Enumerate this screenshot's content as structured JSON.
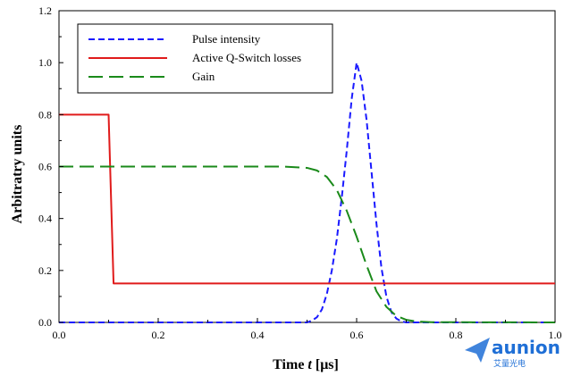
{
  "chart_data": {
    "type": "line",
    "xlabel_prefix": "Time ",
    "xlabel_var": "t",
    "xlabel_suffix": " [μs]",
    "ylabel": "Arbitratry units",
    "xlim": [
      0.0,
      1.0
    ],
    "ylim": [
      0.0,
      1.2
    ],
    "xticks": [
      "0.0",
      "0.2",
      "0.4",
      "0.6",
      "0.8",
      "1.0"
    ],
    "yticks": [
      "0.0",
      "0.2",
      "0.4",
      "0.6",
      "0.8",
      "1.0",
      "1.2"
    ],
    "grid": false,
    "legend_position": "top-left",
    "series": [
      {
        "name": "Pulse intensity",
        "color": "#1a1aff",
        "style": "dashed",
        "x": [
          0.0,
          0.5,
          0.51,
          0.52,
          0.53,
          0.54,
          0.55,
          0.56,
          0.57,
          0.58,
          0.59,
          0.6,
          0.61,
          0.62,
          0.63,
          0.64,
          0.65,
          0.66,
          0.67,
          0.68,
          0.69,
          0.7,
          1.0
        ],
        "y": [
          0.0,
          0.0,
          0.007,
          0.02,
          0.05,
          0.11,
          0.2,
          0.32,
          0.48,
          0.66,
          0.86,
          1.0,
          0.93,
          0.78,
          0.58,
          0.38,
          0.21,
          0.1,
          0.04,
          0.015,
          0.004,
          0.0,
          0.0
        ]
      },
      {
        "name": "Active Q-Switch losses",
        "color": "#e01b1b",
        "style": "solid",
        "x": [
          0.0,
          0.1,
          0.11,
          1.0
        ],
        "y": [
          0.8,
          0.8,
          0.15,
          0.15
        ]
      },
      {
        "name": "Gain",
        "color": "#1a8a1a",
        "style": "long-dashed",
        "x": [
          0.0,
          0.45,
          0.5,
          0.52,
          0.54,
          0.56,
          0.58,
          0.6,
          0.62,
          0.64,
          0.66,
          0.68,
          0.7,
          0.72,
          0.75,
          1.0
        ],
        "y": [
          0.6,
          0.6,
          0.595,
          0.585,
          0.56,
          0.51,
          0.43,
          0.33,
          0.22,
          0.12,
          0.06,
          0.025,
          0.01,
          0.004,
          0.001,
          0.0
        ]
      }
    ]
  },
  "watermark": {
    "brand": "aunion",
    "sub": "艾量光电",
    "icon": "paper-plane-icon",
    "color": "#1f6fd6"
  }
}
